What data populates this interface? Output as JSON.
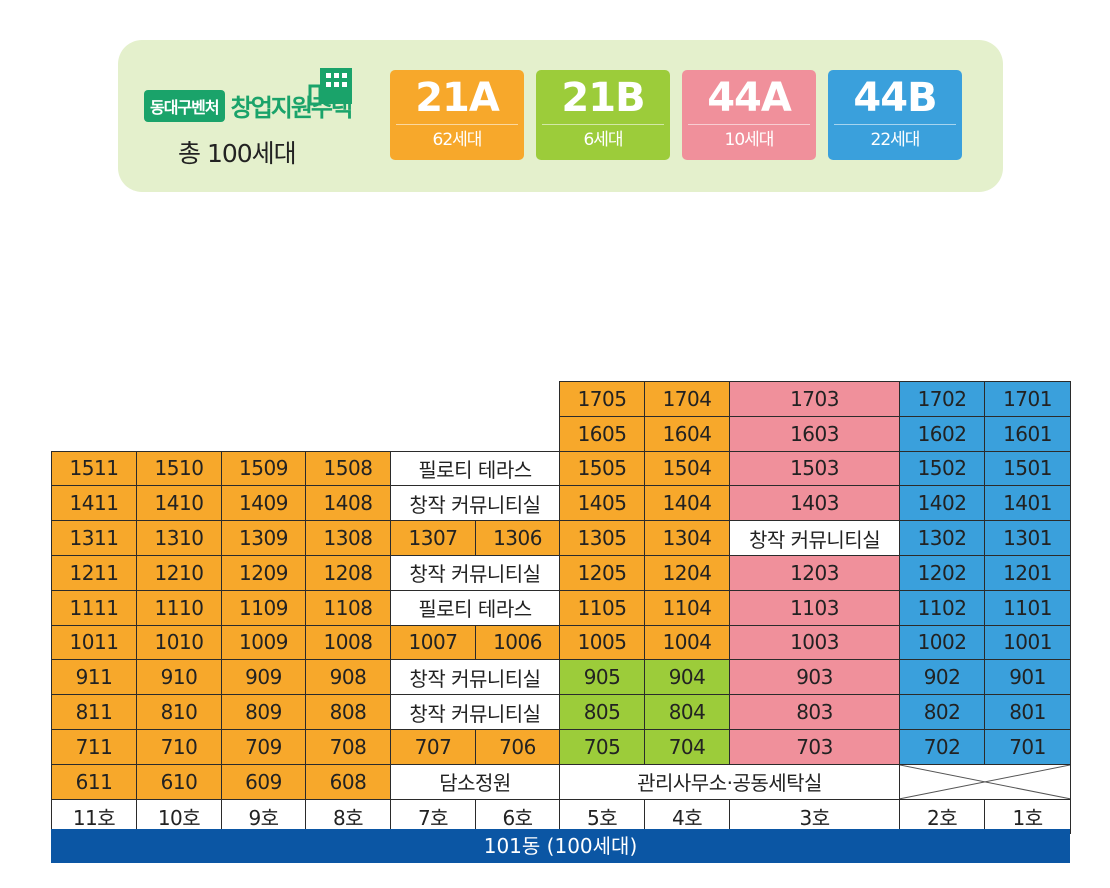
{
  "legend": {
    "brand_badge": "동대구벤처",
    "brand_name": "창업지원주택",
    "total": "총 100세대",
    "unit_types": [
      {
        "type": "21A",
        "count": "62세대",
        "color": "#f7a82b"
      },
      {
        "type": "21B",
        "count": "6세대",
        "color": "#9ccc3a"
      },
      {
        "type": "44A",
        "count": "10세대",
        "color": "#f0909b"
      },
      {
        "type": "44B",
        "count": "22세대",
        "color": "#3aa0dc"
      }
    ]
  },
  "colors": {
    "orange": "#f7a82b",
    "green": "#9ccc3a",
    "pink": "#f0909b",
    "blue": "#3aa0dc",
    "footer": "#0b56a4"
  },
  "floors": {
    "f17": {
      "u1705": "1705",
      "u1704": "1704",
      "u1703": "1703",
      "u1702": "1702",
      "u1701": "1701"
    },
    "f16": {
      "u1605": "1605",
      "u1604": "1604",
      "u1603": "1603",
      "u1602": "1602",
      "u1601": "1601"
    },
    "f15": {
      "u1511": "1511",
      "u1510": "1510",
      "u1509": "1509",
      "u1508": "1508",
      "mid": "필로티 테라스",
      "u1505": "1505",
      "u1504": "1504",
      "u1503": "1503",
      "u1502": "1502",
      "u1501": "1501"
    },
    "f14": {
      "u1411": "1411",
      "u1410": "1410",
      "u1409": "1409",
      "u1408": "1408",
      "mid": "창작 커뮤니티실",
      "u1405": "1405",
      "u1404": "1404",
      "u1403": "1403",
      "u1402": "1402",
      "u1401": "1401"
    },
    "f13": {
      "u1311": "1311",
      "u1310": "1310",
      "u1309": "1309",
      "u1308": "1308",
      "u1307": "1307",
      "u1306": "1306",
      "u1305": "1305",
      "u1304": "1304",
      "mid3": "창작 커뮤니티실",
      "u1302": "1302",
      "u1301": "1301"
    },
    "f12": {
      "u1211": "1211",
      "u1210": "1210",
      "u1209": "1209",
      "u1208": "1208",
      "mid": "창작 커뮤니티실",
      "u1205": "1205",
      "u1204": "1204",
      "u1203": "1203",
      "u1202": "1202",
      "u1201": "1201"
    },
    "f11": {
      "u1111": "1111",
      "u1110": "1110",
      "u1109": "1109",
      "u1108": "1108",
      "mid": "필로티 테라스",
      "u1105": "1105",
      "u1104": "1104",
      "u1103": "1103",
      "u1102": "1102",
      "u1101": "1101"
    },
    "f10": {
      "u1011": "1011",
      "u1010": "1010",
      "u1009": "1009",
      "u1008": "1008",
      "u1007": "1007",
      "u1006": "1006",
      "u1005": "1005",
      "u1004": "1004",
      "u1003": "1003",
      "u1002": "1002",
      "u1001": "1001"
    },
    "f9": {
      "u911": "911",
      "u910": "910",
      "u909": "909",
      "u908": "908",
      "mid": "창작 커뮤니티실",
      "u905": "905",
      "u904": "904",
      "u903": "903",
      "u902": "902",
      "u901": "901"
    },
    "f8": {
      "u811": "811",
      "u810": "810",
      "u809": "809",
      "u808": "808",
      "mid": "창작 커뮤니티실",
      "u805": "805",
      "u804": "804",
      "u803": "803",
      "u802": "802",
      "u801": "801"
    },
    "f7": {
      "u711": "711",
      "u710": "710",
      "u709": "709",
      "u708": "708",
      "u707": "707",
      "u706": "706",
      "u705": "705",
      "u704": "704",
      "u703": "703",
      "u702": "702",
      "u701": "701"
    },
    "f6": {
      "u611": "611",
      "u610": "610",
      "u609": "609",
      "u608": "608",
      "garden": "담소정원",
      "office": "관리사무소·공동세탁실"
    }
  },
  "lines": [
    "11호",
    "10호",
    "9호",
    "8호",
    "7호",
    "6호",
    "5호",
    "4호",
    "3호",
    "2호",
    "1호"
  ],
  "footer": "101동 (100세대)"
}
